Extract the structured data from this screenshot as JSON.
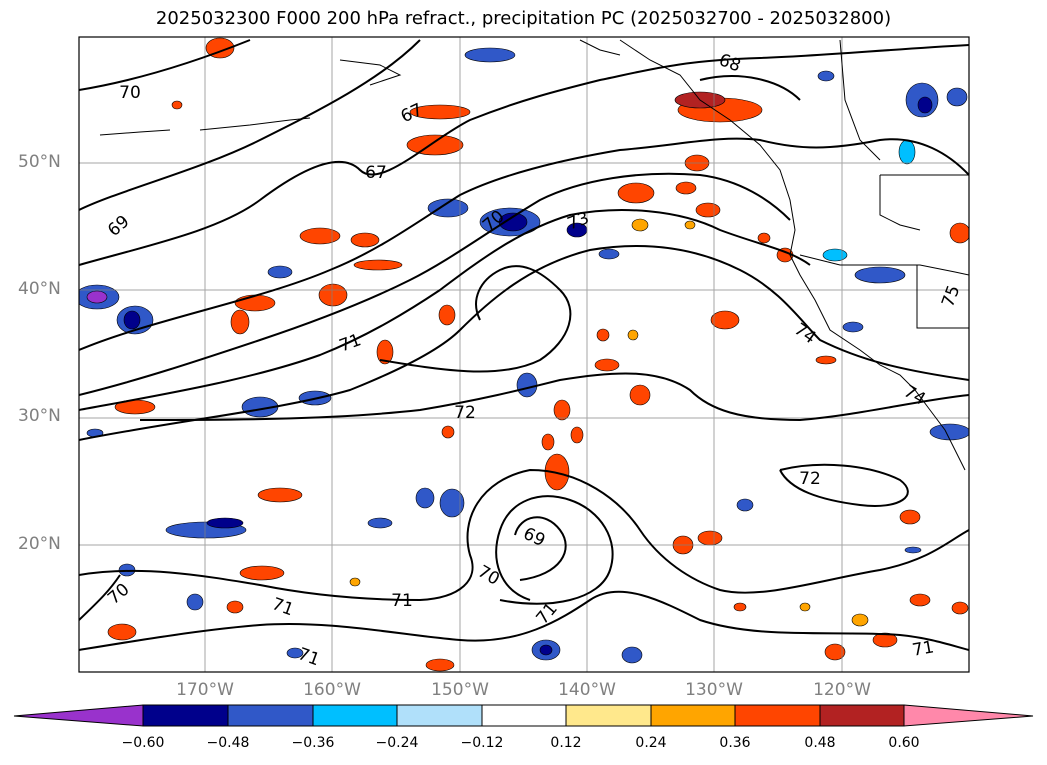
{
  "title": "2025032300 F000 200 hPa refract., precipitation PC (2025032700 - 2025032800)",
  "lat_labels": [
    "50°N",
    "40°N",
    "30°N",
    "20°N"
  ],
  "lon_labels": [
    "170°W",
    "160°W",
    "150°W",
    "140°W",
    "130°W",
    "120°W"
  ],
  "contour_labels": [
    "70",
    "69",
    "67",
    "67",
    "68",
    "70",
    "73",
    "71",
    "72",
    "74",
    "74",
    "75",
    "72",
    "69",
    "70",
    "71",
    "71",
    "71",
    "70",
    "71",
    "71"
  ],
  "colorbar": {
    "ticks": [
      "−0.60",
      "−0.48",
      "−0.36",
      "−0.24",
      "−0.12",
      "0.12",
      "0.24",
      "0.36",
      "0.48",
      "0.60"
    ],
    "colors": [
      "#9932cc",
      "#00008b",
      "#3058c8",
      "#00bfff",
      "#b0e0fa",
      "#ffffff",
      "#ffe88c",
      "#ffa500",
      "#ff4500",
      "#b22222",
      "#ff88aa"
    ]
  }
}
